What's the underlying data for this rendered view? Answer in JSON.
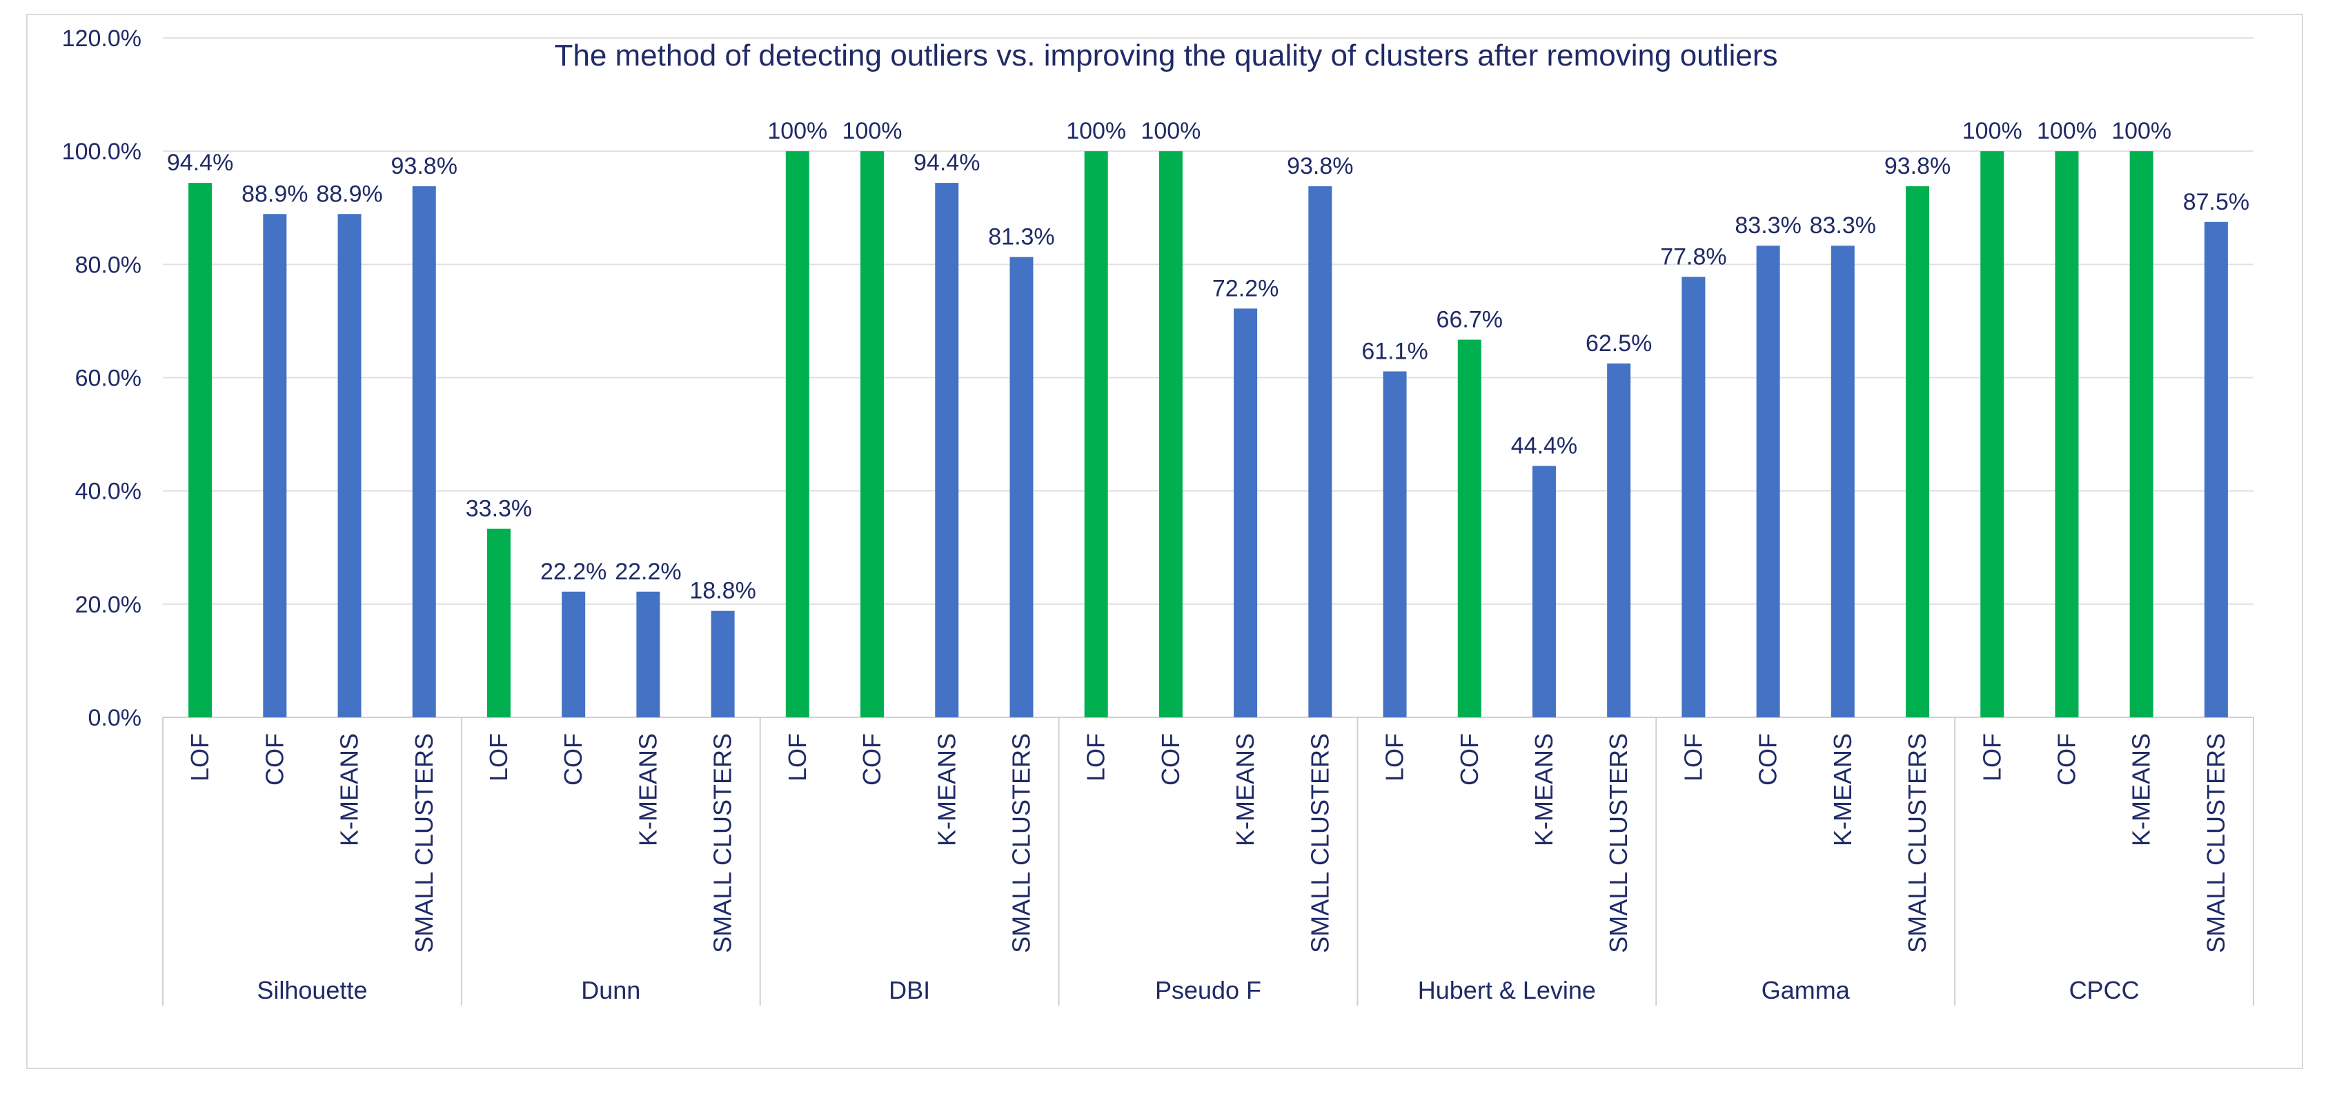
{
  "chart_data": {
    "type": "bar",
    "title": "The method of detecting outliers vs. improving the quality of clusters after removing outliers",
    "xlabel": "",
    "ylabel": "",
    "ylim": [
      0,
      1.2
    ],
    "yticks": [
      "0.0%",
      "20.0%",
      "40.0%",
      "60.0%",
      "80.0%",
      "100.0%",
      "120.0%"
    ],
    "grid": true,
    "colors": {
      "best": "#00b050",
      "other": "#4472c4",
      "text": "#1f2a66",
      "grid": "#e0e0e0",
      "axis": "#d0d0d0"
    },
    "methods": [
      "LOF",
      "COF",
      "K-MEANS",
      "SMALL CLUSTERS"
    ],
    "groups": [
      {
        "name": "Silhouette",
        "values": [
          0.944,
          0.889,
          0.889,
          0.938
        ],
        "labels": [
          "94.4%",
          "88.9%",
          "88.9%",
          "93.8%"
        ],
        "highlight": [
          true,
          false,
          false,
          false
        ]
      },
      {
        "name": "Dunn",
        "values": [
          0.333,
          0.222,
          0.222,
          0.188
        ],
        "labels": [
          "33.3%",
          "22.2%",
          "22.2%",
          "18.8%"
        ],
        "highlight": [
          true,
          false,
          false,
          false
        ]
      },
      {
        "name": "DBI",
        "values": [
          1.0,
          1.0,
          0.944,
          0.813
        ],
        "labels": [
          "100%",
          "100%",
          "94.4%",
          "81.3%"
        ],
        "highlight": [
          true,
          true,
          false,
          false
        ]
      },
      {
        "name": "Pseudo F",
        "values": [
          1.0,
          1.0,
          0.722,
          0.938
        ],
        "labels": [
          "100%",
          "100%",
          "72.2%",
          "93.8%"
        ],
        "highlight": [
          true,
          true,
          false,
          false
        ]
      },
      {
        "name": "Hubert & Levine",
        "values": [
          0.611,
          0.667,
          0.444,
          0.625
        ],
        "labels": [
          "61.1%",
          "66.7%",
          "44.4%",
          "62.5%"
        ],
        "highlight": [
          false,
          true,
          false,
          false
        ]
      },
      {
        "name": "Gamma",
        "values": [
          0.778,
          0.833,
          0.833,
          0.938
        ],
        "labels": [
          "77.8%",
          "83.3%",
          "83.3%",
          "93.8%"
        ],
        "highlight": [
          false,
          false,
          false,
          true
        ]
      },
      {
        "name": "CPCC",
        "values": [
          1.0,
          1.0,
          1.0,
          0.875
        ],
        "labels": [
          "100%",
          "100%",
          "100%",
          "87.5%"
        ],
        "highlight": [
          true,
          true,
          true,
          false
        ]
      }
    ]
  }
}
